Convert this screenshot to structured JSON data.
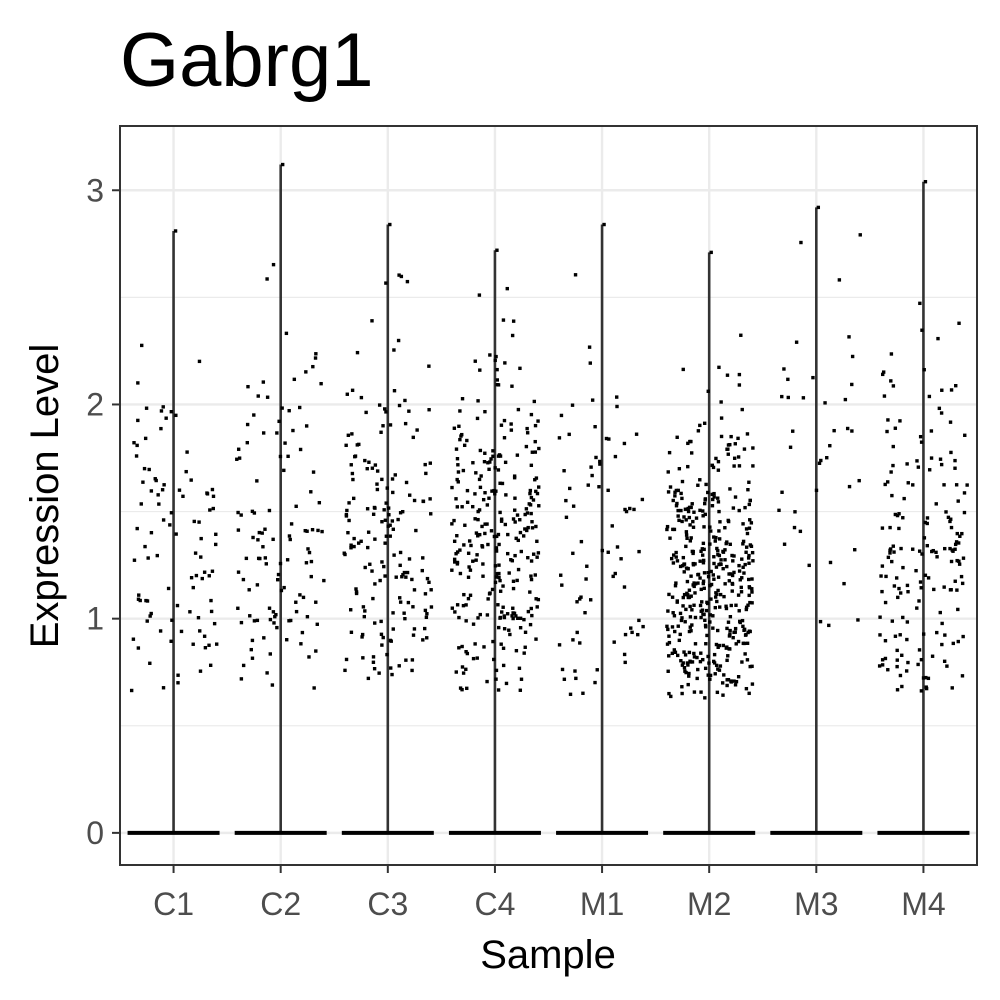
{
  "chart_data": {
    "type": "scatter",
    "subtype": "violin-jitter",
    "title": "Gabrg1",
    "xlabel": "Sample",
    "ylabel": "Expression Level",
    "categories": [
      "C1",
      "C2",
      "C3",
      "C4",
      "M1",
      "M2",
      "M3",
      "M4"
    ],
    "ylim": [
      -0.15,
      3.3
    ],
    "yticks": [
      0,
      1,
      2,
      3
    ],
    "grid": true,
    "legend": "none",
    "point_color": "#000000",
    "line_color": "#333333",
    "groups": [
      {
        "name": "C1",
        "max": 2.81,
        "n_nonzero": 95,
        "min_nonzero": 0.66,
        "center": 1.35,
        "spread": 0.38
      },
      {
        "name": "C2",
        "max": 3.12,
        "n_nonzero": 115,
        "min_nonzero": 0.67,
        "center": 1.35,
        "spread": 0.42
      },
      {
        "name": "C3",
        "max": 2.84,
        "n_nonzero": 175,
        "min_nonzero": 0.7,
        "center": 1.45,
        "spread": 0.45
      },
      {
        "name": "C4",
        "max": 2.72,
        "n_nonzero": 290,
        "min_nonzero": 0.66,
        "center": 1.35,
        "spread": 0.42
      },
      {
        "name": "M1",
        "max": 2.84,
        "n_nonzero": 75,
        "min_nonzero": 0.63,
        "center": 1.3,
        "spread": 0.48
      },
      {
        "name": "M2",
        "max": 2.71,
        "n_nonzero": 440,
        "min_nonzero": 0.63,
        "center": 1.2,
        "spread": 0.38
      },
      {
        "name": "M3",
        "max": 2.92,
        "n_nonzero": 40,
        "min_nonzero": 0.95,
        "center": 1.7,
        "spread": 0.55
      },
      {
        "name": "M4",
        "max": 3.04,
        "n_nonzero": 175,
        "min_nonzero": 0.64,
        "center": 1.3,
        "spread": 0.45
      }
    ]
  }
}
